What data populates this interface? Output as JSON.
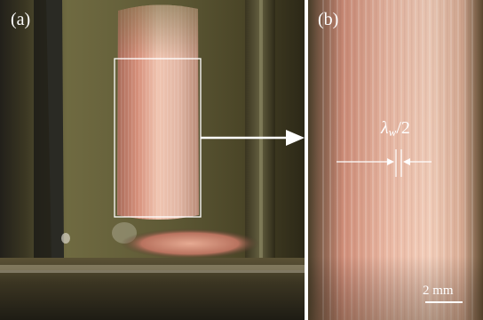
{
  "figure": {
    "panel_a": {
      "label": "(a)"
    },
    "panel_b": {
      "label": "(b)",
      "wavelength_annotation": {
        "symbol": "λ",
        "subscript": "w",
        "suffix": "/2"
      },
      "scale_bar": {
        "label": "2 mm"
      }
    }
  },
  "colors": {
    "background_dark": "#2a2616",
    "background_olive": "#6f6a41",
    "cylinder_pink": "#d99a82",
    "cylinder_highlight": "#f4d3c0",
    "annotation": "#ffffff"
  }
}
